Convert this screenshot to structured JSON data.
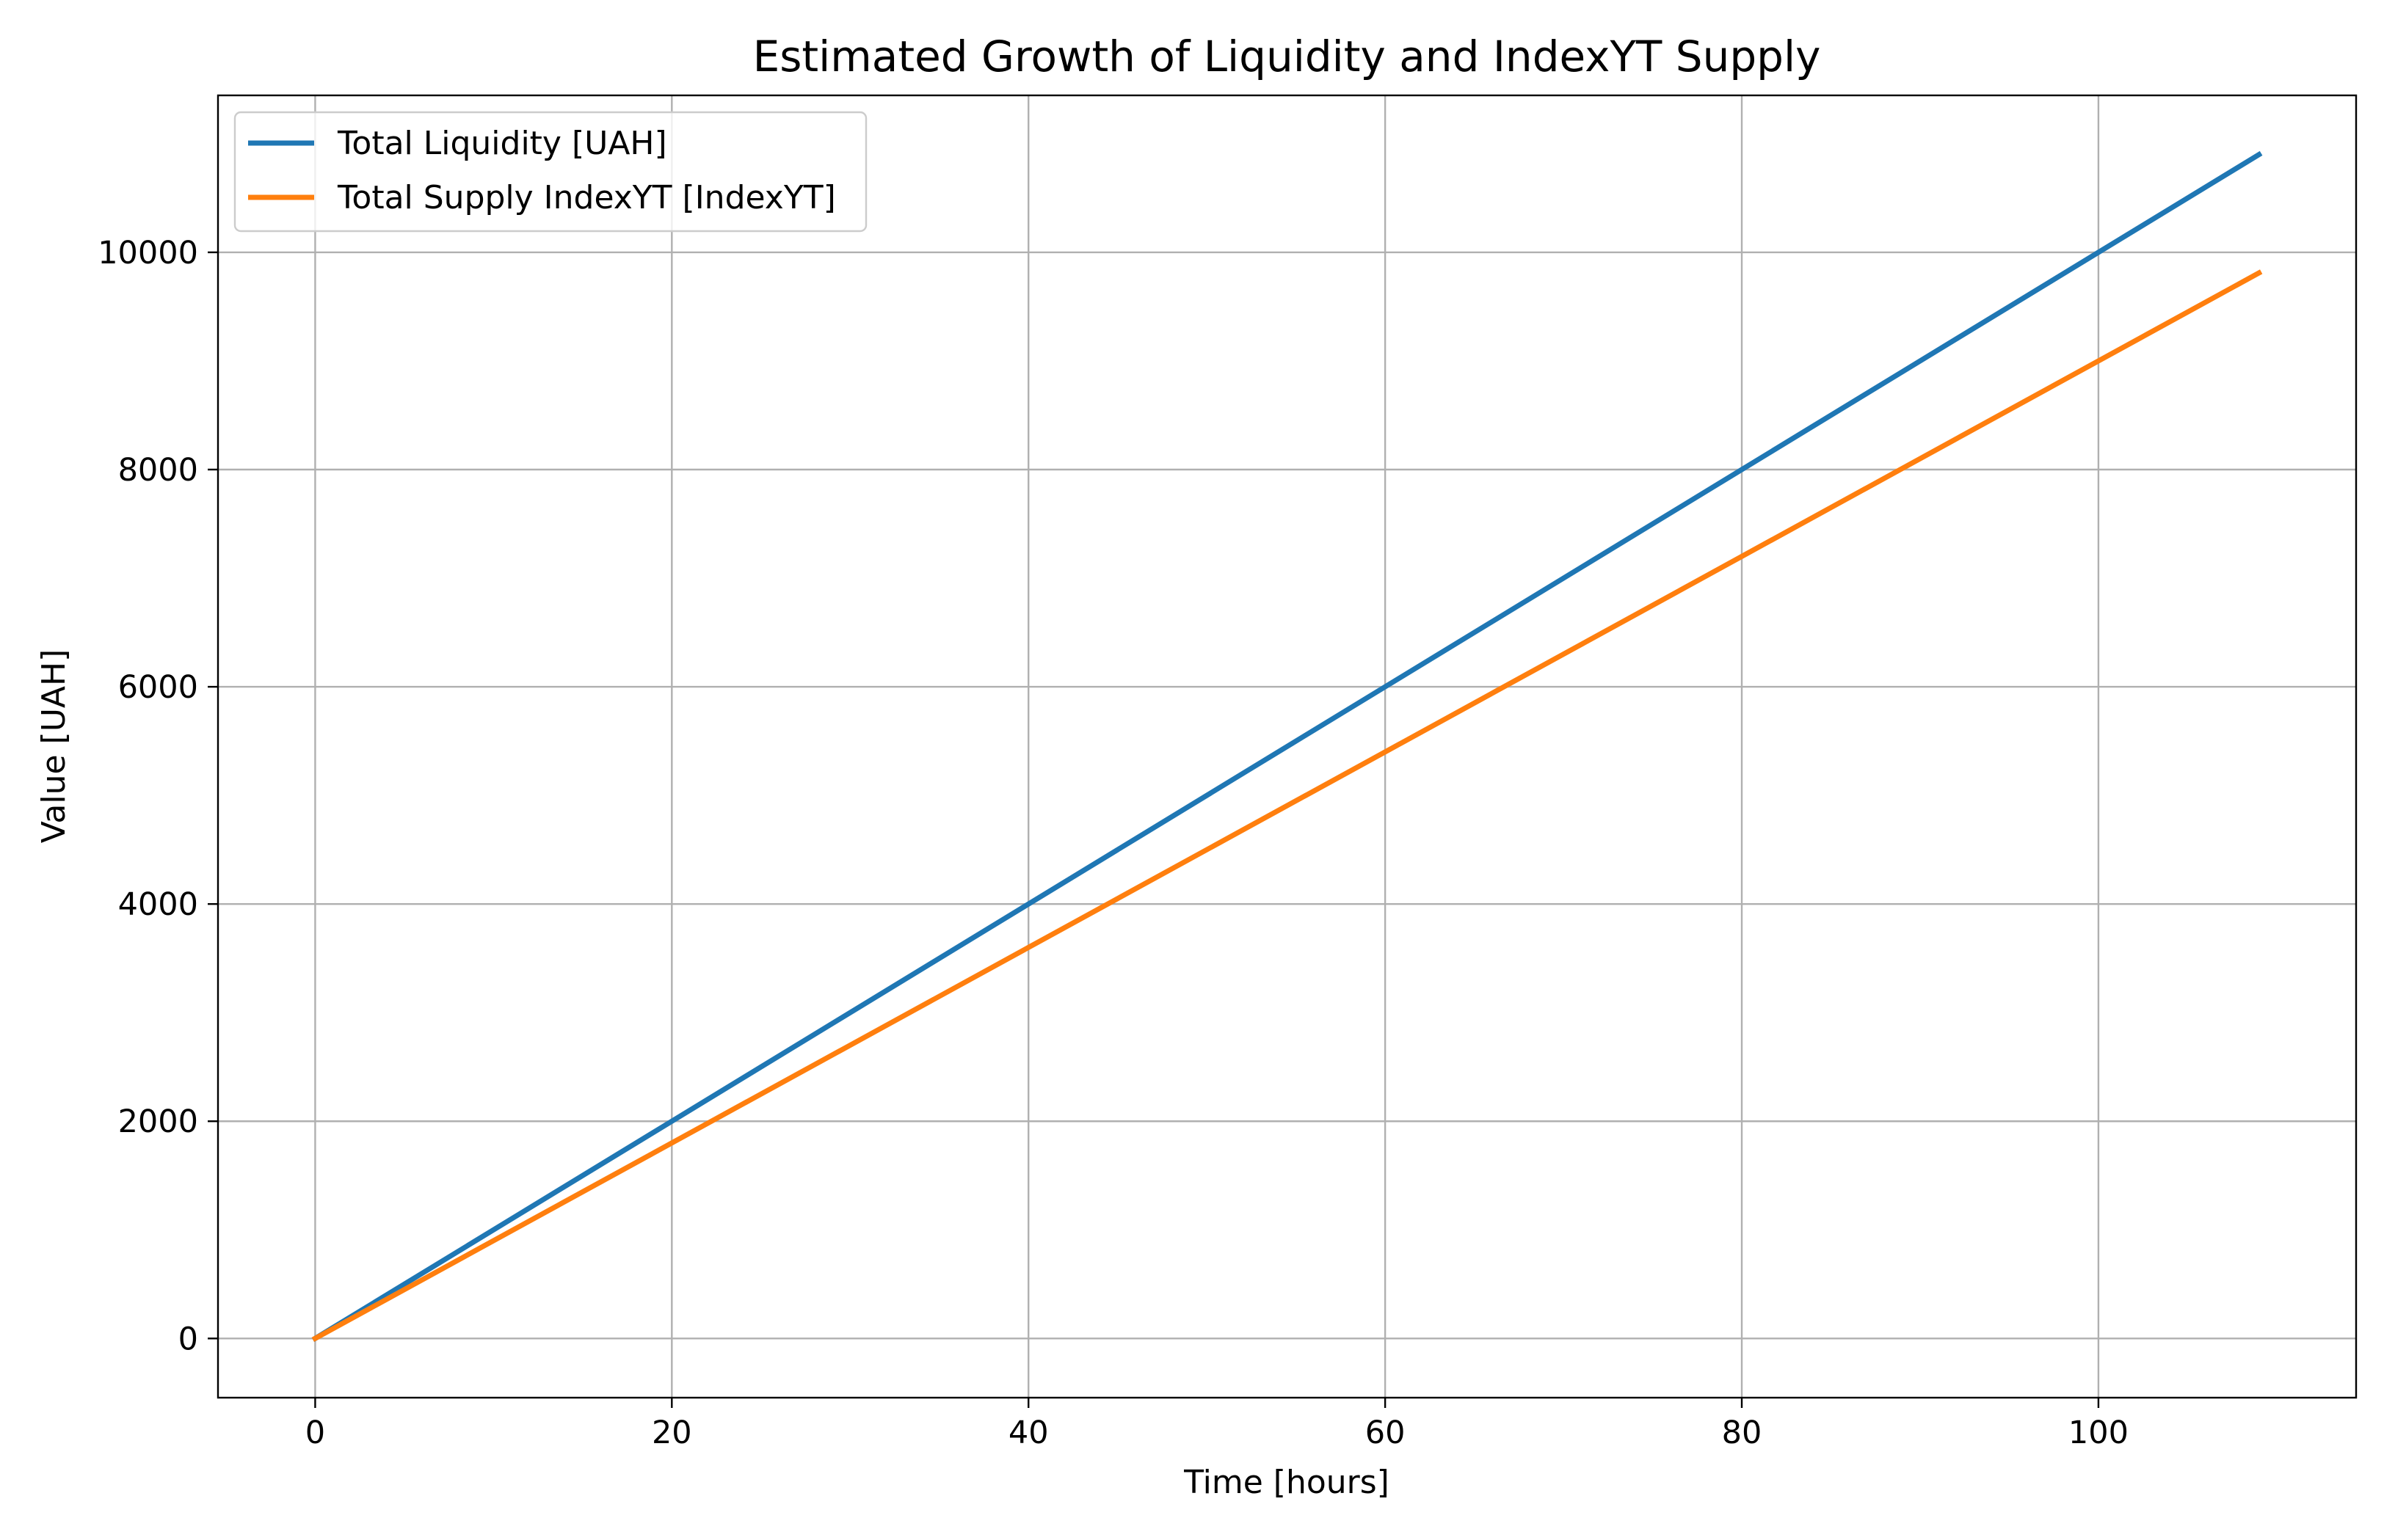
{
  "chart_data": {
    "type": "line",
    "title": "Estimated Growth of Liquidity and IndexYT Supply",
    "xlabel": "Time [hours]",
    "ylabel": "Value [UAH]",
    "xlim": [
      -5.45,
      114.45
    ],
    "ylim": [
      -545,
      11445
    ],
    "x_ticks": [
      0,
      20,
      40,
      60,
      80,
      100
    ],
    "y_ticks": [
      0,
      2000,
      4000,
      6000,
      8000,
      10000
    ],
    "grid": true,
    "legend_location": "upper left",
    "series": [
      {
        "name": "Total Liquidity [UAH]",
        "color": "#1f77b4",
        "x": [
          0,
          109
        ],
        "y": [
          0,
          10900
        ]
      },
      {
        "name": "Total Supply IndexYT [IndexYT]",
        "color": "#ff7f0e",
        "x": [
          0,
          109
        ],
        "y": [
          0,
          9810
        ]
      }
    ]
  }
}
